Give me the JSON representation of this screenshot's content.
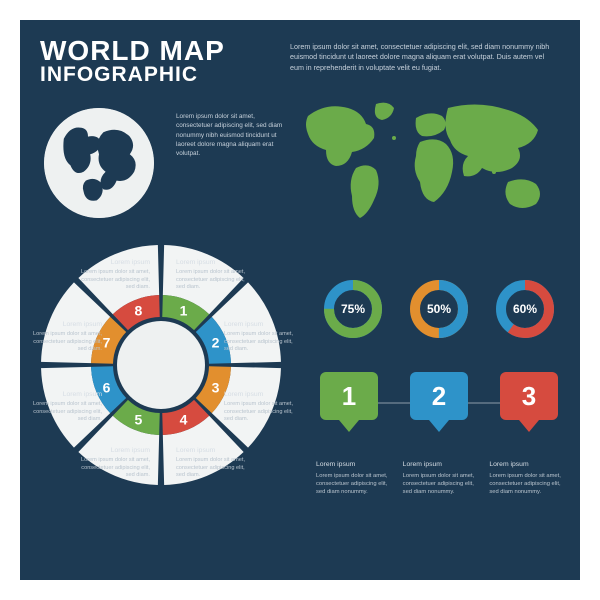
{
  "background_color": "#1d3a53",
  "title": {
    "line1": "WORLD MAP",
    "line2": "INFOGRAPHIC",
    "color": "#ffffff"
  },
  "hero_text": "Lorem ipsum dolor sit amet, consectetuer adipiscing elit, sed diam nonummy nibh euismod tincidunt ut laoreet dolore magna aliquam erat volutpat. Duis autem vel eum in reprehenderit in voluptate velit eu fugiat.",
  "mid_text": "Lorem ipsum dolor sit amet, consectetuer adipiscing elit, sed diam nonummy nibh euismod tincidunt ut laoreet dolore magna aliquam erat volutpat.",
  "map_color": "#6bab4a",
  "globe": {
    "fill": "#eef1f1",
    "land": "#1d3a53"
  },
  "wheel": {
    "type": "segmented-pie",
    "segments": 8,
    "outer_radius": 120,
    "inner_radius": 48,
    "gap_deg": 3,
    "outer_color": "#f2f4f4",
    "center_color": "#eef1f1",
    "seg_colors": [
      "#6bab4a",
      "#2e93c9",
      "#e28f2e",
      "#d64b3f",
      "#6bab4a",
      "#2e93c9",
      "#e28f2e",
      "#d64b3f"
    ],
    "numbers": [
      "1",
      "2",
      "3",
      "4",
      "5",
      "6",
      "7",
      "8"
    ],
    "label_heading": "Lorem ipsum",
    "label_body": "Lorem ipsum dolor sit amet, consectetuer adipiscing elit, sed diam."
  },
  "donuts": [
    {
      "percent": 75,
      "color": "#6bab4a",
      "track": "#2e93c9",
      "label": "75%"
    },
    {
      "percent": 50,
      "color": "#2e93c9",
      "track": "#e28f2e",
      "label": "50%"
    },
    {
      "percent": 60,
      "color": "#d64b3f",
      "track": "#2e93c9",
      "label": "60%"
    }
  ],
  "pins": [
    {
      "n": "1",
      "color": "#6bab4a"
    },
    {
      "n": "2",
      "color": "#2e93c9"
    },
    {
      "n": "3",
      "color": "#d64b3f"
    }
  ],
  "pin_text_heading": "Lorem ipsum",
  "pin_text_body": "Lorem ipsum dolor sit amet, consectetuer adipiscing elit, sed diam nonummy."
}
